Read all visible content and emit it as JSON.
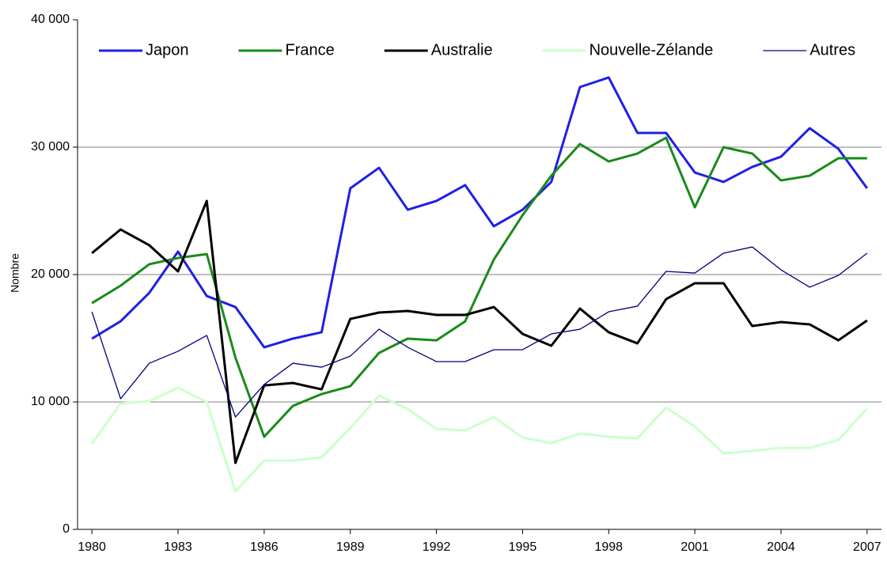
{
  "chart_data": {
    "type": "line",
    "y_label": "Nombre",
    "x": [
      1980,
      1981,
      1982,
      1983,
      1984,
      1985,
      1986,
      1987,
      1988,
      1989,
      1990,
      1991,
      1992,
      1993,
      1994,
      1995,
      1996,
      1997,
      1998,
      1999,
      2000,
      2001,
      2002,
      2003,
      2004,
      2005,
      2006,
      2007
    ],
    "xlim": [
      1979.5,
      2007.5
    ],
    "xticks": [
      1980,
      1983,
      1986,
      1989,
      1992,
      1995,
      1998,
      2001,
      2004,
      2007
    ],
    "ylim": [
      0,
      40000
    ],
    "yticks": [
      0,
      {
        "value": 10000,
        "label": "10 000"
      },
      {
        "value": 20000,
        "label": "20 000"
      },
      {
        "value": 30000,
        "label": "30 000"
      },
      {
        "value": 40000,
        "label": "40 000"
      }
    ],
    "grid": true,
    "legend": "top",
    "series": [
      {
        "name": "Japon",
        "color": "#1f1fe6",
        "line_width": 3,
        "values": [
          14970,
          16330,
          18570,
          21800,
          18320,
          17450,
          14290,
          14970,
          15470,
          26770,
          28380,
          25090,
          25780,
          27020,
          23790,
          25090,
          27270,
          34720,
          35470,
          31120,
          31120,
          28010,
          27270,
          28450,
          29250,
          31490,
          29870,
          26770
        ]
      },
      {
        "name": "France",
        "color": "#1a8a1a",
        "line_width": 3,
        "values": [
          17760,
          19130,
          20810,
          21300,
          21610,
          13480,
          7270,
          9690,
          10620,
          11240,
          13850,
          14970,
          14840,
          16330,
          21180,
          24660,
          27760,
          30250,
          28880,
          29500,
          30740,
          25280,
          30000,
          29500,
          27390,
          27760,
          29130,
          29130
        ]
      },
      {
        "name": "Australie",
        "color": "#000000",
        "line_width": 3,
        "values": [
          21680,
          23540,
          22300,
          20250,
          25780,
          5220,
          11300,
          11490,
          10990,
          16520,
          17020,
          17140,
          16830,
          16830,
          17450,
          15340,
          14410,
          17330,
          15470,
          14600,
          18070,
          19320,
          19320,
          15960,
          16270,
          16090,
          14840,
          16400
        ]
      },
      {
        "name": "Nouvelle-Zélande",
        "color": "#ccffcc",
        "line_width": 3,
        "values": [
          6710,
          9880,
          10060,
          11120,
          10000,
          2980,
          5400,
          5400,
          5650,
          7950,
          10500,
          9440,
          7890,
          7760,
          8820,
          7200,
          6770,
          7520,
          7270,
          7140,
          9560,
          8070,
          5960,
          6150,
          6400,
          6400,
          7020,
          9500
        ]
      },
      {
        "name": "Autres",
        "color": "#000080",
        "line_width": 1.3,
        "values": [
          17080,
          10250,
          13040,
          13980,
          15220,
          8820,
          11370,
          13040,
          12730,
          13600,
          15710,
          14290,
          13170,
          13170,
          14100,
          14100,
          15340,
          15710,
          17080,
          17520,
          20250,
          20120,
          21680,
          22170,
          20370,
          19010,
          19940,
          21680
        ]
      }
    ]
  }
}
